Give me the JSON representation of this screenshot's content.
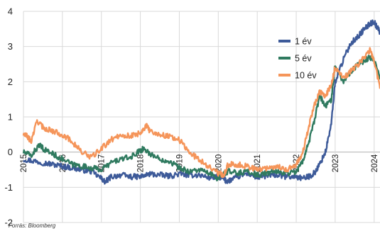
{
  "chart_data": {
    "type": "line",
    "title": "",
    "xlabel": "",
    "ylabel": "",
    "source_text": "Forrás: Bloomberg",
    "xlim": [
      2015.0,
      2024.15
    ],
    "ylim": [
      -2,
      4
    ],
    "y_ticks": [
      4,
      3,
      2,
      1,
      0,
      -1,
      -2
    ],
    "x_tick_labels": [
      {
        "value": 2015,
        "label": "2015"
      },
      {
        "value": 2016,
        "label": "2016"
      },
      {
        "value": 2017,
        "label": "2017"
      },
      {
        "value": 2018,
        "label": "2018"
      },
      {
        "value": 2019,
        "label": "2019"
      },
      {
        "value": 2020,
        "label": "2020"
      },
      {
        "value": 2021,
        "label": "2021"
      },
      {
        "value": 2022,
        "label": "2022"
      },
      {
        "value": 2023,
        "label": "2023"
      },
      {
        "value": 2024,
        "label": "2024"
      }
    ],
    "grid": true,
    "legend_position": "right",
    "series": [
      {
        "name": "1 év",
        "color": "#3d5a99",
        "x": [
          2015.0,
          2015.25,
          2015.5,
          2015.75,
          2016.0,
          2016.25,
          2016.5,
          2016.75,
          2017.0,
          2017.1,
          2017.25,
          2017.5,
          2017.75,
          2018.0,
          2018.25,
          2018.5,
          2018.75,
          2019.0,
          2019.25,
          2019.5,
          2019.75,
          2020.0,
          2020.1,
          2020.2,
          2020.3,
          2020.5,
          2020.75,
          2021.0,
          2021.25,
          2021.5,
          2021.75,
          2022.0,
          2022.2,
          2022.4,
          2022.5,
          2022.6,
          2022.75,
          2022.9,
          2023.0,
          2023.2,
          2023.4,
          2023.6,
          2023.75,
          2023.9,
          2024.0,
          2024.15
        ],
        "values": [
          -0.2,
          -0.25,
          -0.3,
          -0.35,
          -0.4,
          -0.45,
          -0.5,
          -0.55,
          -0.75,
          -0.85,
          -0.7,
          -0.65,
          -0.7,
          -0.7,
          -0.62,
          -0.65,
          -0.68,
          -0.62,
          -0.65,
          -0.65,
          -0.72,
          -0.7,
          -0.72,
          -0.82,
          -0.8,
          -0.7,
          -0.6,
          -0.72,
          -0.68,
          -0.65,
          -0.7,
          -0.7,
          -0.75,
          -0.65,
          -0.55,
          -0.35,
          0.0,
          0.8,
          2.0,
          2.6,
          3.1,
          3.3,
          3.5,
          3.65,
          3.7,
          3.4
        ]
      },
      {
        "name": "5 év",
        "color": "#2f7a5f",
        "x": [
          2015.0,
          2015.2,
          2015.4,
          2015.5,
          2015.75,
          2016.0,
          2016.25,
          2016.5,
          2016.75,
          2017.0,
          2017.25,
          2017.5,
          2017.75,
          2018.0,
          2018.1,
          2018.25,
          2018.5,
          2018.75,
          2019.0,
          2019.25,
          2019.5,
          2019.75,
          2020.0,
          2020.15,
          2020.25,
          2020.5,
          2020.75,
          2021.0,
          2021.25,
          2021.5,
          2021.75,
          2022.0,
          2022.15,
          2022.3,
          2022.45,
          2022.6,
          2022.75,
          2022.9,
          2023.0,
          2023.2,
          2023.4,
          2023.6,
          2023.75,
          2023.9,
          2024.0,
          2024.15
        ],
        "values": [
          0.0,
          -0.1,
          0.2,
          0.1,
          -0.05,
          -0.2,
          -0.35,
          -0.4,
          -0.45,
          -0.5,
          -0.3,
          -0.2,
          -0.15,
          0.05,
          0.1,
          -0.05,
          -0.2,
          -0.25,
          -0.45,
          -0.55,
          -0.5,
          -0.6,
          -0.75,
          -0.6,
          -0.55,
          -0.6,
          -0.55,
          -0.65,
          -0.6,
          -0.55,
          -0.6,
          -0.55,
          -0.3,
          0.2,
          0.8,
          1.6,
          1.3,
          1.5,
          2.5,
          2.0,
          2.3,
          2.5,
          2.6,
          2.7,
          2.6,
          2.1
        ]
      },
      {
        "name": "10 év",
        "color": "#f5955a",
        "x": [
          2015.0,
          2015.1,
          2015.2,
          2015.35,
          2015.5,
          2015.75,
          2016.0,
          2016.25,
          2016.5,
          2016.75,
          2017.0,
          2017.25,
          2017.5,
          2017.75,
          2018.0,
          2018.15,
          2018.25,
          2018.5,
          2018.75,
          2019.0,
          2019.25,
          2019.5,
          2019.75,
          2020.0,
          2020.15,
          2020.25,
          2020.5,
          2020.75,
          2021.0,
          2021.25,
          2021.5,
          2021.75,
          2022.0,
          2022.15,
          2022.3,
          2022.45,
          2022.6,
          2022.75,
          2022.9,
          2023.0,
          2023.2,
          2023.4,
          2023.6,
          2023.75,
          2023.9,
          2024.0,
          2024.15
        ],
        "values": [
          0.5,
          0.45,
          0.3,
          0.9,
          0.7,
          0.6,
          0.5,
          0.3,
          0.0,
          -0.15,
          0.1,
          0.35,
          0.5,
          0.45,
          0.55,
          0.75,
          0.6,
          0.5,
          0.45,
          0.35,
          0.0,
          -0.2,
          -0.4,
          -0.6,
          -0.65,
          -0.35,
          -0.35,
          -0.4,
          -0.5,
          -0.45,
          -0.4,
          -0.5,
          -0.35,
          -0.1,
          0.6,
          1.3,
          1.7,
          1.6,
          1.9,
          2.4,
          2.1,
          2.3,
          2.5,
          2.7,
          2.9,
          2.6,
          1.8
        ]
      }
    ]
  }
}
